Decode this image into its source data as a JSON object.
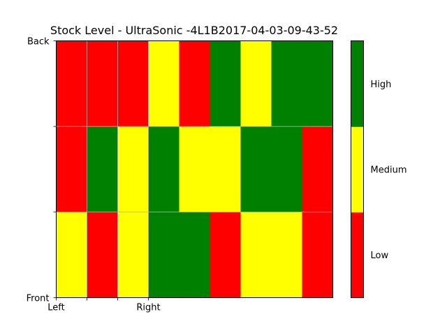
{
  "chart_data": {
    "type": "heatmap",
    "title": "Stock Level - UltraSonic -4L1B2017-04-03-09-43-52",
    "xlabel": "",
    "ylabel": "",
    "columns": 9,
    "rows_top_to_bottom": [
      [
        "Low",
        "Low",
        "Low",
        "Medium",
        "Low",
        "High",
        "Medium",
        "High",
        "High"
      ],
      [
        "Low",
        "High",
        "Medium",
        "High",
        "Medium",
        "Medium",
        "High",
        "High",
        "Low"
      ],
      [
        "Medium",
        "Low",
        "Medium",
        "High",
        "High",
        "Low",
        "Medium",
        "Medium",
        "Low"
      ]
    ],
    "x_tick_labels": [
      "Left",
      "",
      "",
      "Right"
    ],
    "y_tick_labels_bottom_to_top": [
      "Front",
      "",
      "",
      "Back"
    ],
    "grid": true,
    "colorbar": {
      "levels_bottom_to_top": [
        "Low",
        "Medium",
        "High"
      ],
      "colors": {
        "Low": "#ff0000",
        "Medium": "#ffff00",
        "High": "#008000"
      }
    }
  }
}
